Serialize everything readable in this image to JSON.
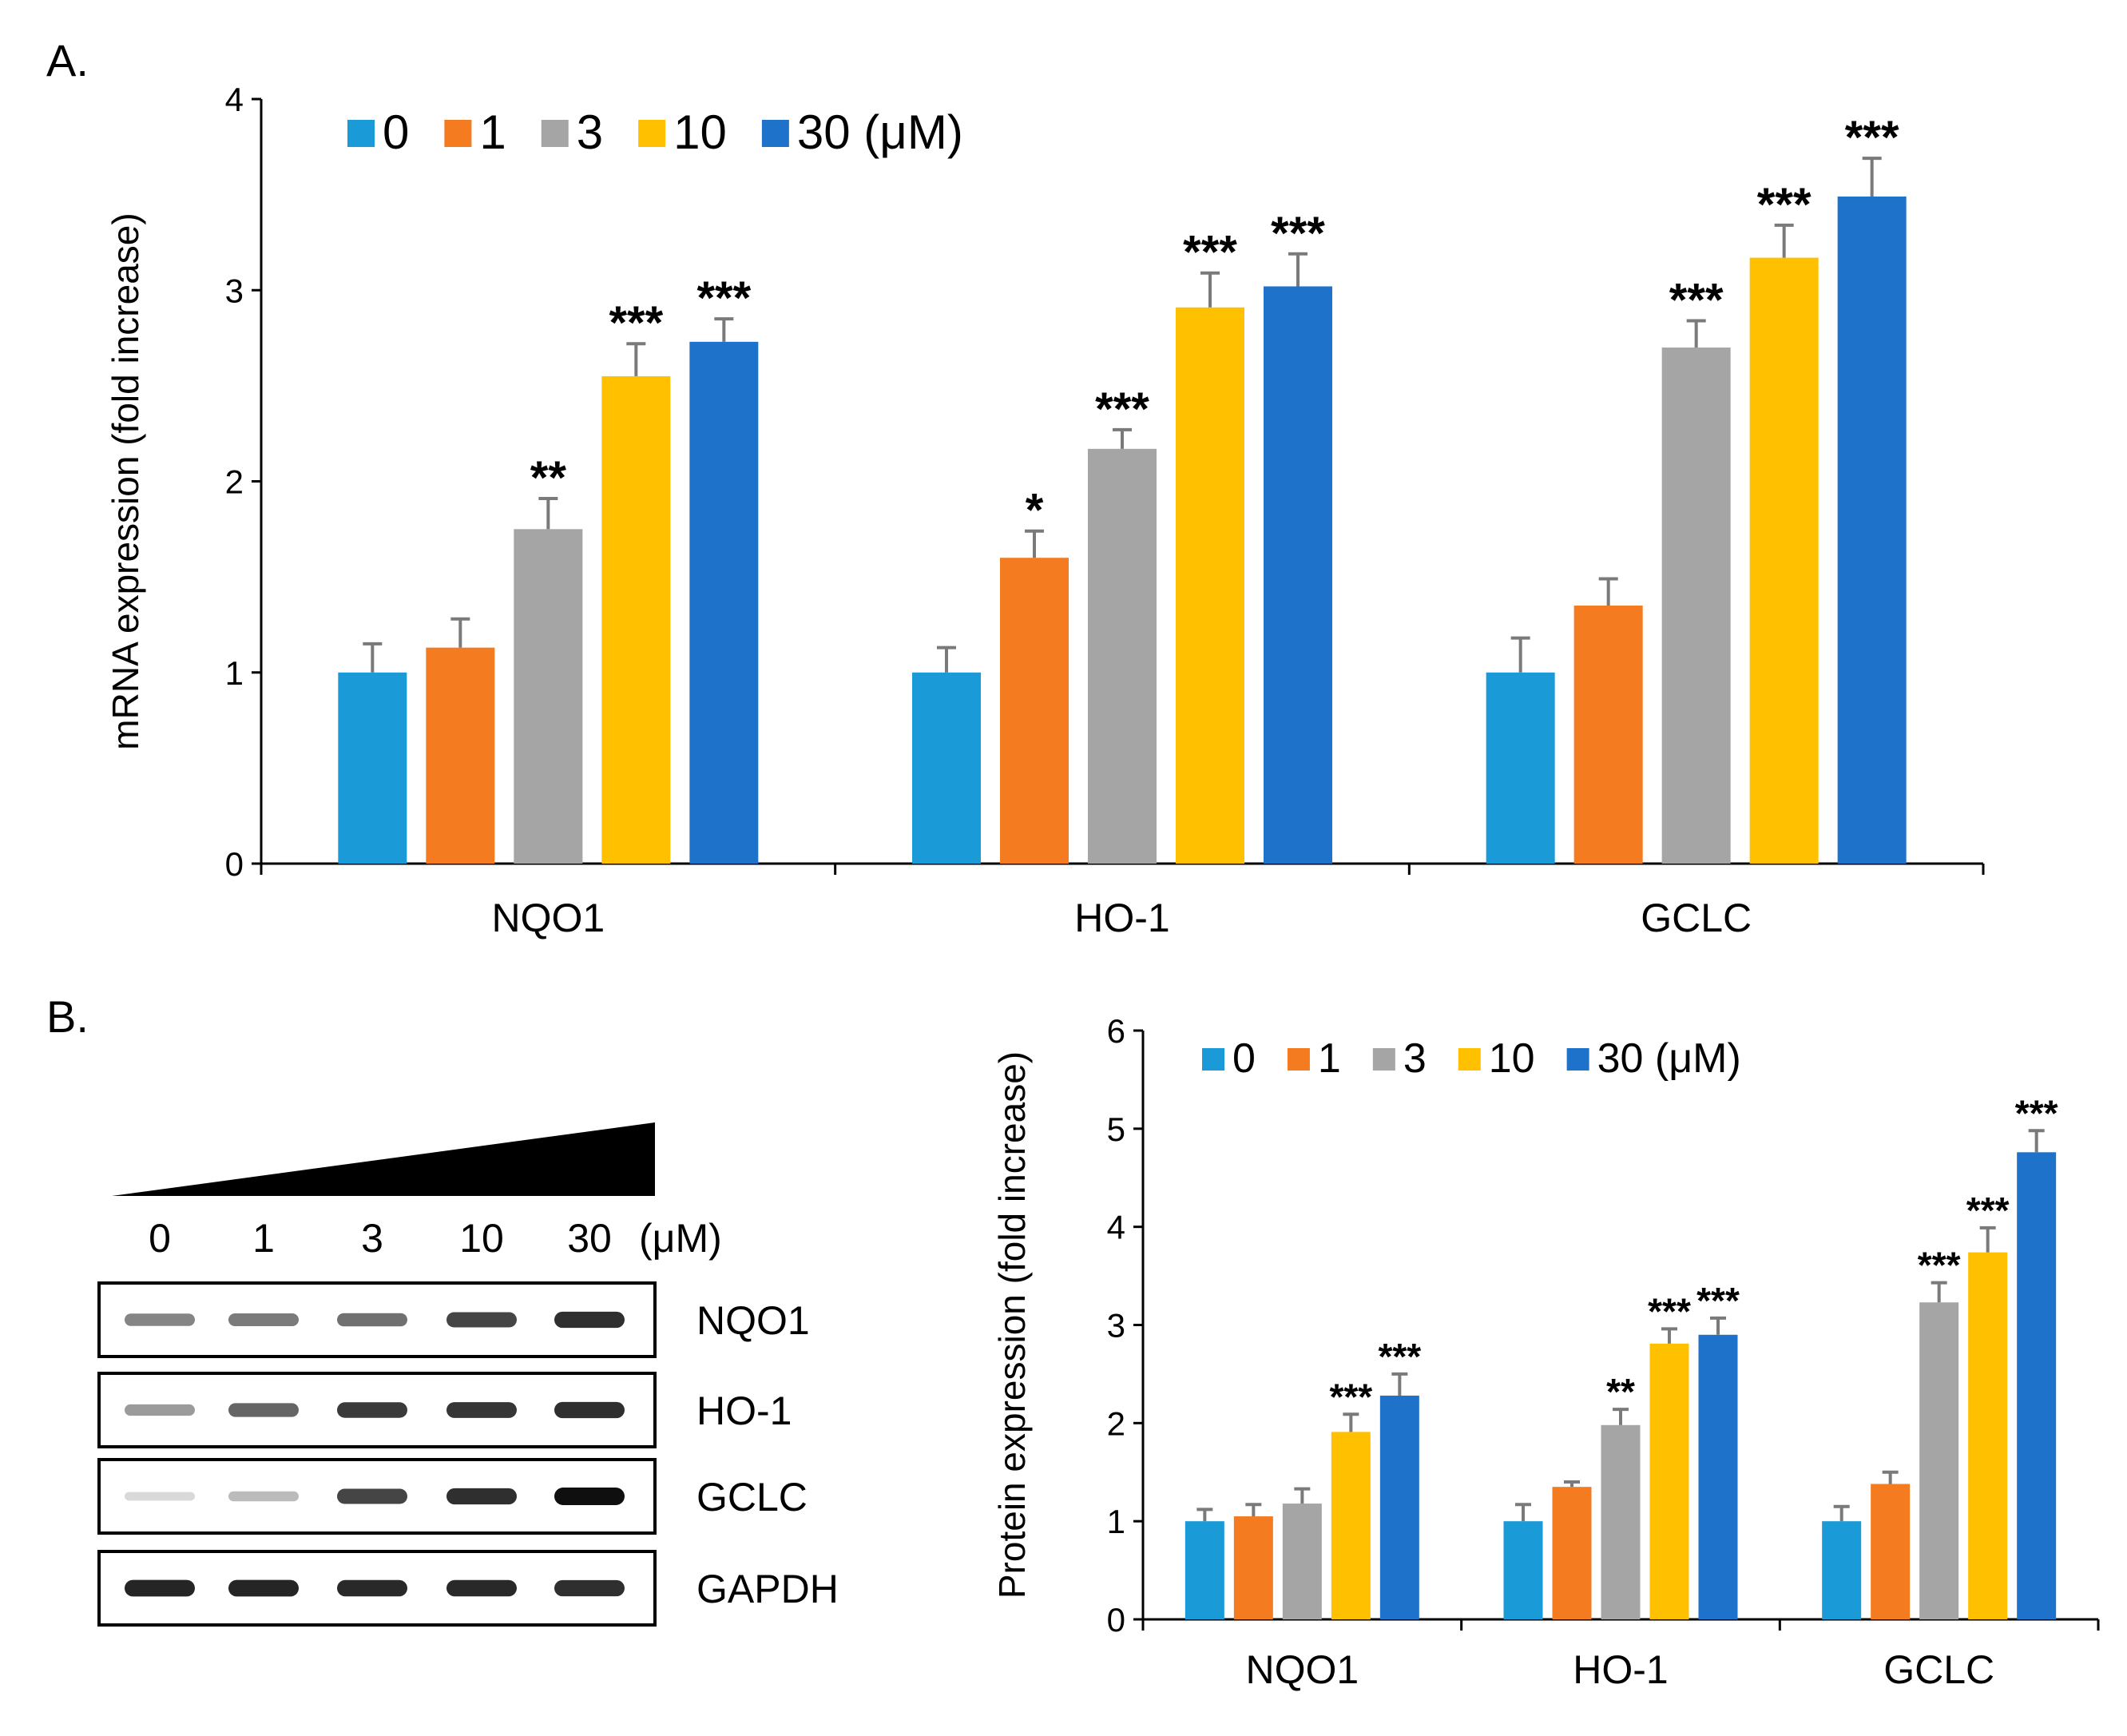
{
  "panel_a_label": "A.",
  "panel_b_label": "B.",
  "colors": {
    "0": "#1a9ad6",
    "1": "#f47b20",
    "3": "#a5a5a5",
    "10": "#ffc000",
    "30": "#1f72c9"
  },
  "chart_data": [
    {
      "type": "bar",
      "id": "A",
      "ylabel": "mRNA expression (fold increase)",
      "ylim": [
        0,
        4
      ],
      "yticks": [
        "0",
        "1",
        "2",
        "3",
        "4"
      ],
      "categories": [
        "NQO1",
        "HO-1",
        "GCLC"
      ],
      "legend": [
        "0",
        "1",
        "3",
        "10",
        "30 (μM)"
      ],
      "series": [
        {
          "name": "0",
          "values": [
            1.0,
            1.0,
            1.0
          ],
          "errors": [
            0.15,
            0.13,
            0.18
          ],
          "sig": [
            "",
            "",
            ""
          ]
        },
        {
          "name": "1",
          "values": [
            1.13,
            1.6,
            1.35
          ],
          "errors": [
            0.15,
            0.14,
            0.14
          ],
          "sig": [
            "",
            "*",
            ""
          ]
        },
        {
          "name": "3",
          "values": [
            1.75,
            2.17,
            2.7
          ],
          "errors": [
            0.16,
            0.1,
            0.14
          ],
          "sig": [
            "**",
            "***",
            "***"
          ]
        },
        {
          "name": "10",
          "values": [
            2.55,
            2.91,
            3.17
          ],
          "errors": [
            0.17,
            0.18,
            0.17
          ],
          "sig": [
            "***",
            "***",
            "***"
          ]
        },
        {
          "name": "30",
          "values": [
            2.73,
            3.02,
            3.49
          ],
          "errors": [
            0.12,
            0.17,
            0.2
          ],
          "sig": [
            "***",
            "***",
            "***"
          ]
        }
      ]
    },
    {
      "type": "bar",
      "id": "B",
      "ylabel": "Protein expression (fold increase)",
      "ylim": [
        0,
        6
      ],
      "yticks": [
        "0",
        "1",
        "2",
        "3",
        "4",
        "5",
        "6"
      ],
      "categories": [
        "NQO1",
        "HO-1",
        "GCLC"
      ],
      "legend": [
        "0",
        "1",
        "3",
        "10",
        "30 (μM)"
      ],
      "series": [
        {
          "name": "0",
          "values": [
            1.0,
            1.0,
            1.0
          ],
          "errors": [
            0.12,
            0.17,
            0.15
          ],
          "sig": [
            "",
            "",
            ""
          ]
        },
        {
          "name": "1",
          "values": [
            1.05,
            1.35,
            1.38
          ],
          "errors": [
            0.12,
            0.05,
            0.12
          ],
          "sig": [
            "",
            "",
            ""
          ]
        },
        {
          "name": "3",
          "values": [
            1.18,
            1.98,
            3.23
          ],
          "errors": [
            0.15,
            0.16,
            0.2
          ],
          "sig": [
            "",
            "**",
            "***"
          ]
        },
        {
          "name": "10",
          "values": [
            1.91,
            2.81,
            3.74
          ],
          "errors": [
            0.18,
            0.15,
            0.25
          ],
          "sig": [
            "***",
            "***",
            "***"
          ]
        },
        {
          "name": "30",
          "values": [
            2.28,
            2.9,
            4.76
          ],
          "errors": [
            0.22,
            0.17,
            0.22
          ],
          "sig": [
            "***",
            "***",
            "***"
          ]
        }
      ]
    }
  ],
  "blot": {
    "doses": [
      "0",
      "1",
      "3",
      "10",
      "30"
    ],
    "unit": "(μM)",
    "rows": [
      {
        "label": "NQO1",
        "intensity": [
          0.45,
          0.5,
          0.55,
          0.75,
          0.85
        ]
      },
      {
        "label": "HO-1",
        "intensity": [
          0.35,
          0.6,
          0.8,
          0.82,
          0.85
        ]
      },
      {
        "label": "GCLC",
        "intensity": [
          0.06,
          0.2,
          0.75,
          0.85,
          1.0
        ]
      },
      {
        "label": "GAPDH",
        "intensity": [
          0.9,
          0.9,
          0.88,
          0.88,
          0.85
        ]
      }
    ]
  }
}
